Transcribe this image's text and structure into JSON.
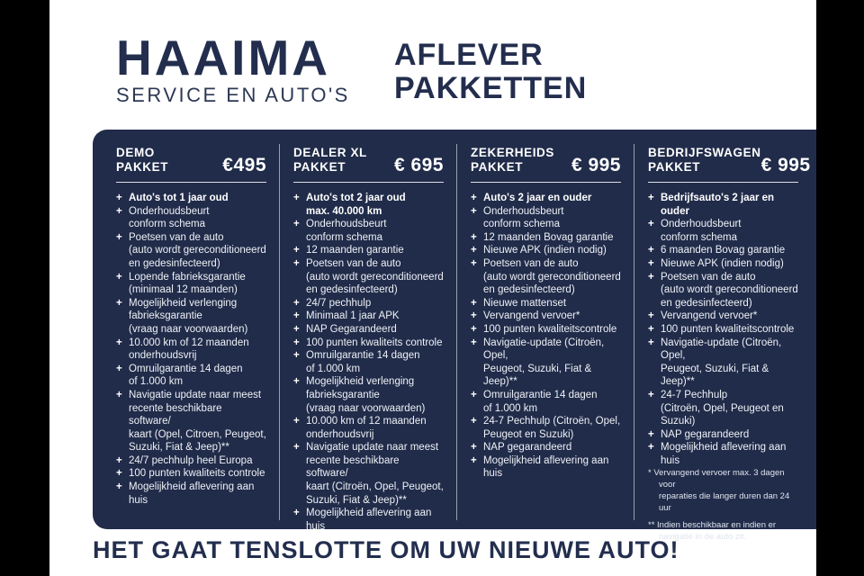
{
  "ui": {
    "bullet": "+"
  },
  "colors": {
    "panel_bg": "#212c4a",
    "navy_text": "#232e4e",
    "side_bars": "#000000",
    "feature_text": "#eef1f6"
  },
  "header": {
    "logo_title": "HAAIMA",
    "logo_subtitle": "SERVICE EN AUTO'S",
    "heading_line1": "AFLEVER",
    "heading_line2": "PAKKETTEN"
  },
  "packages": [
    {
      "name_line1": "DEMO",
      "name_line2": "PAKKET",
      "price": "€495",
      "items": [
        {
          "text": "Auto's tot 1 jaar oud"
        },
        {
          "text": "Onderhoudsbeurt\nconform schema"
        },
        {
          "text": "Poetsen van de auto\n(auto wordt gereconditioneerd\nen gedesinfecteerd)"
        },
        {
          "text": "Lopende fabrieksgarantie\n(minimaal 12 maanden)"
        },
        {
          "text": "Mogelijkheid verlenging\nfabrieksgarantie\n(vraag naar voorwaarden)"
        },
        {
          "text": "10.000 km of 12 maanden\nonderhoudsvrij"
        },
        {
          "text": "Omruilgarantie 14 dagen\nof 1.000 km"
        },
        {
          "text": "Navigatie update naar meest\nrecente beschikbare software/\nkaart (Opel, Citroen, Peugeot,\nSuzuki, Fiat & Jeep)**"
        },
        {
          "text": "24/7 pechhulp heel Europa"
        },
        {
          "text": "100 punten kwaliteits controle"
        },
        {
          "text": "Mogelijkheid aflevering aan huis"
        }
      ]
    },
    {
      "name_line1": "DEALER XL",
      "name_line2": "PAKKET",
      "price": "€ 695",
      "items": [
        {
          "text": "Auto's tot 2 jaar oud\nmax. 40.000 km"
        },
        {
          "text": "Onderhoudsbeurt\nconform schema"
        },
        {
          "text": "12 maanden garantie"
        },
        {
          "text": "Poetsen van de auto\n(auto wordt gereconditioneerd\nen gedesinfecteerd)"
        },
        {
          "text": "24/7 pechhulp"
        },
        {
          "text": "Minimaal 1 jaar APK"
        },
        {
          "text": "NAP Gegarandeerd"
        },
        {
          "text": "100 punten kwaliteits controle"
        },
        {
          "text": "Omruilgarantie 14 dagen\nof 1.000 km"
        },
        {
          "text": "Mogelijkheid verlenging\nfabrieksgarantie\n(vraag naar voorwaarden)"
        },
        {
          "text": "10.000 km of 12 maanden\nonderhoudsvrij"
        },
        {
          "text": "Navigatie update naar meest\nrecente beschikbare software/\nkaart (Citroën, Opel, Peugeot,\nSuzuki, Fiat & Jeep)**"
        },
        {
          "text": "Mogelijkheid aflevering aan huis"
        }
      ]
    },
    {
      "name_line1": "ZEKERHEIDS",
      "name_line2": "PAKKET",
      "price": "€ 995",
      "items": [
        {
          "text": "Auto's 2 jaar en ouder"
        },
        {
          "text": "Onderhoudsbeurt\nconform schema"
        },
        {
          "text": "12 maanden Bovag garantie"
        },
        {
          "text": "Nieuwe APK (indien nodig)"
        },
        {
          "text": "Poetsen van de auto\n(auto wordt gereconditioneerd\nen gedesinfecteerd)"
        },
        {
          "text": "Nieuwe mattenset"
        },
        {
          "text": "Vervangend vervoer*"
        },
        {
          "text": "100 punten kwaliteitscontrole"
        },
        {
          "text": "Navigatie-update (Citroën, Opel,\nPeugeot, Suzuki, Fiat & Jeep)**"
        },
        {
          "text": "Omruilgarantie 14 dagen\nof 1.000 km"
        },
        {
          "text": "24-7 Pechhulp (Citroën, Opel,\nPeugeot en Suzuki)"
        },
        {
          "text": "NAP gegarandeerd"
        },
        {
          "text": "Mogelijkheid aflevering aan huis"
        }
      ]
    },
    {
      "name_line1": "BEDRIJFSWAGEN",
      "name_line2": "PAKKET",
      "price": "€ 995",
      "items": [
        {
          "text": "Bedrijfsauto's 2 jaar en ouder"
        },
        {
          "text": "Onderhoudsbeurt\nconform schema"
        },
        {
          "text": "6 maanden Bovag garantie"
        },
        {
          "text": "Nieuwe APK (indien nodig)"
        },
        {
          "text": "Poetsen van de auto\n(auto wordt gereconditioneerd\nen gedesinfecteerd)"
        },
        {
          "text": "Vervangend vervoer*"
        },
        {
          "text": "100 punten kwaliteitscontrole"
        },
        {
          "text": "Navigatie-update (Citroën, Opel,\nPeugeot, Suzuki, Fiat & Jeep)**"
        },
        {
          "text": "24-7 Pechhulp\n(Citroën, Opel, Peugeot en Suzuki)"
        },
        {
          "text": "NAP gegarandeerd"
        },
        {
          "text": "Mogelijkheid aflevering aan huis"
        }
      ]
    }
  ],
  "footnotes": [
    "* Vervangend vervoer max. 3 dagen voor\nreparaties die langer duren dan 24 uur",
    "** Indien beschikbaar en indien er\nnavigatie in de auto zit."
  ],
  "tagline": "HET GAAT TENSLOTTE OM UW NIEUWE AUTO!"
}
